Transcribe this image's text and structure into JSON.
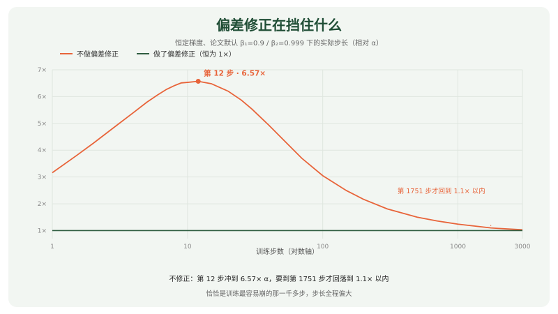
{
  "title": "偏差修正在挡住什么",
  "subtitle": "恒定梯度、论文默认 β₁=0.9 / β₂=0.999 下的实际步长（相对 α）",
  "colors": {
    "uncorrected": "#e8643a",
    "corrected": "#2f5d40",
    "grid": "#dfe6df"
  },
  "chart_data": {
    "type": "line",
    "x_scale": "log",
    "xlabel": "训练步数（对数轴）",
    "ylabel": "",
    "xlim": [
      1,
      3000
    ],
    "ylim": [
      0.7,
      7
    ],
    "x_ticks": [
      {
        "value": 1,
        "label": "1"
      },
      {
        "value": 10,
        "label": "10"
      },
      {
        "value": 100,
        "label": "100"
      },
      {
        "value": 1000,
        "label": "1000"
      },
      {
        "value": 3000,
        "label": "3000"
      }
    ],
    "y_ticks": [
      {
        "value": 1,
        "label": "1×"
      },
      {
        "value": 2,
        "label": "2×"
      },
      {
        "value": 3,
        "label": "3×"
      },
      {
        "value": 4,
        "label": "4×"
      },
      {
        "value": 5,
        "label": "5×"
      },
      {
        "value": 6,
        "label": "6×"
      },
      {
        "value": 7,
        "label": "7×"
      }
    ],
    "series": [
      {
        "name": "不做偏差修正",
        "color": "#e8643a",
        "x": [
          1,
          1.5,
          2,
          3,
          4,
          5,
          6,
          7,
          8,
          9,
          10,
          12,
          15,
          20,
          25,
          30,
          40,
          50,
          70,
          100,
          150,
          200,
          300,
          500,
          700,
          1000,
          1500,
          1751,
          2000,
          3000
        ],
        "y": [
          3.16,
          3.79,
          4.25,
          4.93,
          5.41,
          5.79,
          6.06,
          6.27,
          6.41,
          6.51,
          6.53,
          6.57,
          6.48,
          6.2,
          5.87,
          5.53,
          4.93,
          4.44,
          3.7,
          3.05,
          2.49,
          2.17,
          1.81,
          1.5,
          1.36,
          1.24,
          1.14,
          1.1,
          1.08,
          1.03
        ]
      },
      {
        "name": "做了偏差修正（恒为 1×）",
        "color": "#2f5d40",
        "x": [
          1,
          3000
        ],
        "y": [
          1,
          1
        ]
      }
    ],
    "annotations": {
      "peak": {
        "x": 12,
        "y": 6.57,
        "label": "第 12 步 · 6.57×"
      },
      "return": {
        "x": 1751,
        "label": "第 1751 步才回到 1.1× 以内"
      }
    }
  },
  "footer": {
    "main": "不修正：第 12 步冲到 6.57× α，要到第 1751 步才回落到 1.1× 以内",
    "sub": "恰恰是训练最容易崩的那一千多步，步长全程偏大"
  }
}
